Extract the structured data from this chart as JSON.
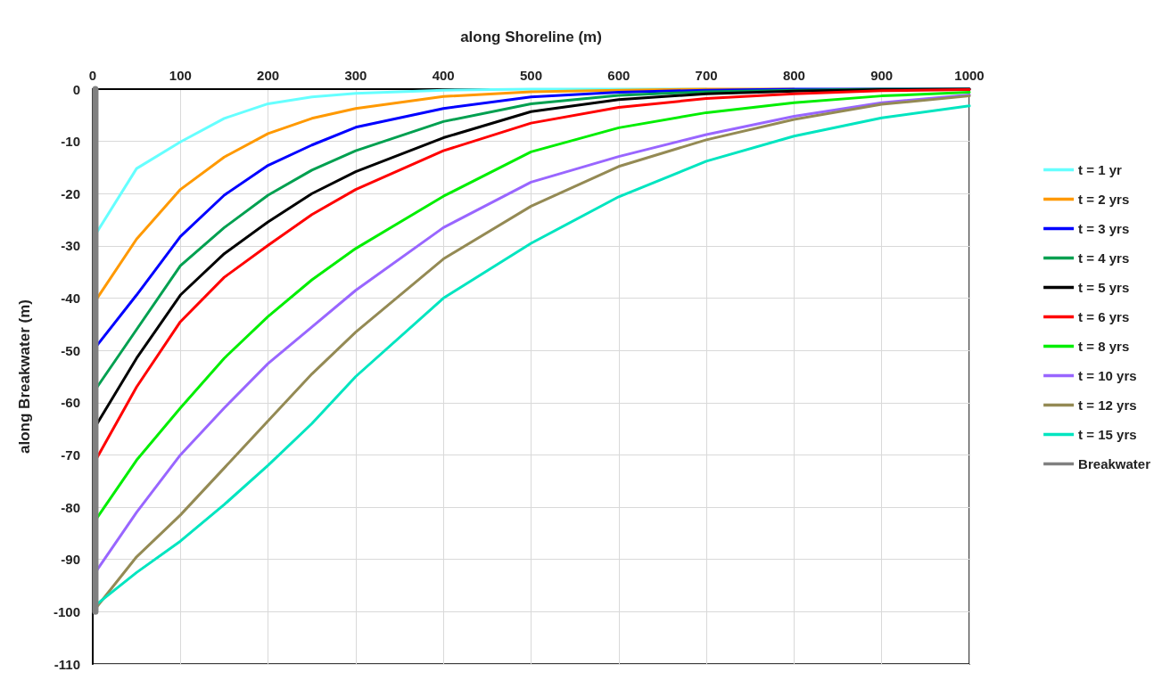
{
  "chart_data": {
    "type": "line",
    "xlabel": "along Shoreline (m)",
    "ylabel": "along Breakwater (m)",
    "x": [
      5,
      50,
      100,
      150,
      200,
      250,
      300,
      400,
      500,
      600,
      700,
      800,
      900,
      1000
    ],
    "series": [
      {
        "name": "t = 1 yr",
        "color": "#66ffff",
        "values": [
          -27.3,
          -15.2,
          -10.1,
          -5.6,
          -2.8,
          -1.5,
          -0.8,
          -0.2,
          0,
          0,
          0,
          null,
          null,
          null
        ]
      },
      {
        "name": "t = 2 yrs",
        "color": "#ff9900",
        "values": [
          -40,
          -28.7,
          -19.2,
          -13,
          -8.5,
          -5.6,
          -3.7,
          -1.4,
          -0.5,
          -0.2,
          0,
          0,
          null,
          null
        ]
      },
      {
        "name": "t = 3 yrs",
        "color": "#0000ff",
        "values": [
          -49,
          -39.4,
          -28.2,
          -20.3,
          -14.6,
          -10.7,
          -7.3,
          -3.7,
          -1.5,
          -0.6,
          -0.2,
          0,
          0,
          0
        ]
      },
      {
        "name": "t = 4 yrs",
        "color": "#00a050",
        "values": [
          -57,
          -46,
          -33.8,
          -26.5,
          -20.3,
          -15.5,
          -11.8,
          -6.2,
          -2.8,
          -1.2,
          -0.5,
          -0.2,
          0,
          0
        ]
      },
      {
        "name": "t = 5 yrs",
        "color": "#000000",
        "values": [
          -64,
          -51.5,
          -39.4,
          -31.5,
          -25.4,
          -20,
          -15.8,
          -9.3,
          -4.3,
          -2,
          -0.9,
          -0.4,
          -0.1,
          0
        ]
      },
      {
        "name": "t = 6 yrs",
        "color": "#ff0000",
        "values": [
          -70.5,
          -57,
          -44.5,
          -36,
          -29.9,
          -24,
          -19.2,
          -11.8,
          -6.5,
          -3.5,
          -1.8,
          -0.9,
          -0.3,
          -0.1
        ]
      },
      {
        "name": "t = 8 yrs",
        "color": "#00ee00",
        "values": [
          -82,
          -71,
          -61,
          -51.5,
          -43.5,
          -36.5,
          -30.5,
          -20.5,
          -12,
          -7.4,
          -4.5,
          -2.6,
          -1.3,
          -0.6
        ]
      },
      {
        "name": "t = 10 yrs",
        "color": "#9966ff",
        "values": [
          -92,
          -81,
          -70,
          -61,
          -52.5,
          -45.5,
          -38.5,
          -26.5,
          -17.8,
          -12.9,
          -8.7,
          -5.2,
          -2.6,
          -1.1
        ]
      },
      {
        "name": "t = 12 yrs",
        "color": "#948a54",
        "values": [
          -99,
          -89.5,
          -81.5,
          -72.5,
          -63.5,
          -54.5,
          -46.5,
          -32.5,
          -22.4,
          -14.8,
          -9.7,
          -5.8,
          -2.9,
          -1.3
        ]
      },
      {
        "name": "t = 15 yrs",
        "color": "#00e5c0",
        "values": [
          -98.5,
          -92.5,
          -86.5,
          -79.5,
          -72,
          -64,
          -55,
          -40,
          -29.5,
          -20.6,
          -13.8,
          -9,
          -5.5,
          -3.2
        ]
      },
      {
        "name": "Breakwater",
        "color": "#808080",
        "x": [
          3,
          3
        ],
        "values": [
          0,
          -100
        ]
      }
    ],
    "xlim": [
      0,
      1000
    ],
    "xticks": [
      0,
      100,
      200,
      300,
      400,
      500,
      600,
      700,
      800,
      900,
      {
        "value": 1000,
        "label": "1000"
      }
    ],
    "ylim": [
      -110,
      0
    ],
    "yticks": [
      0,
      -10,
      -20,
      -30,
      -40,
      -50,
      -60,
      -70,
      -80,
      -90,
      -100,
      -110
    ],
    "grid": true,
    "legend": "right",
    "marker": "none",
    "line_style": "solid"
  }
}
